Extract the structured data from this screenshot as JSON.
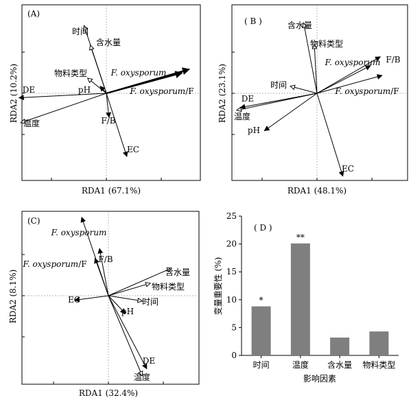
{
  "chart_data": [
    {
      "type": "scatter",
      "panel_label": "(A)",
      "xlabel": "RDA1 (67.1%)",
      "ylabel": "RDA2 (10.2%)",
      "vectors": [
        {
          "name": "F. oxysporum",
          "x": 0.93,
          "y": 0.27,
          "style": "bold"
        },
        {
          "name": "F. oxysporum/F",
          "x": 0.85,
          "y": 0.23,
          "style": "bold"
        },
        {
          "name": "时间",
          "x": -0.25,
          "y": 0.76,
          "style": "open"
        },
        {
          "name": "含水量",
          "x": -0.18,
          "y": 0.54,
          "style": "open"
        },
        {
          "name": "物料类型",
          "x": -0.21,
          "y": 0.17,
          "style": "open"
        },
        {
          "name": "pH",
          "x": -0.07,
          "y": 0.08,
          "style": "solid"
        },
        {
          "name": "DE",
          "x": -0.98,
          "y": -0.05,
          "style": "solid"
        },
        {
          "name": "温度",
          "x": -0.96,
          "y": -0.33,
          "style": "open"
        },
        {
          "name": "F/B",
          "x": 0.03,
          "y": -0.27,
          "style": "solid"
        },
        {
          "name": "EC",
          "x": 0.23,
          "y": -0.71,
          "style": "solid"
        }
      ]
    },
    {
      "type": "scatter",
      "panel_label": "( B )",
      "xlabel": "RDA1 (48.1%)",
      "ylabel": "RDA2 (23.1%)",
      "vectors": [
        {
          "name": "含水量",
          "x": -0.15,
          "y": 0.79,
          "style": "open"
        },
        {
          "name": "物料类型",
          "x": -0.03,
          "y": 0.55,
          "style": "open"
        },
        {
          "name": "F. oxysporum",
          "x": 0.6,
          "y": 0.31,
          "style": "solid"
        },
        {
          "name": "F/B",
          "x": 0.71,
          "y": 0.41,
          "style": "solid"
        },
        {
          "name": "F. oxysporum/F",
          "x": 0.73,
          "y": 0.2,
          "style": "solid"
        },
        {
          "name": "时间",
          "x": -0.3,
          "y": 0.08,
          "style": "open"
        },
        {
          "name": "DE",
          "x": -0.86,
          "y": -0.16,
          "style": "solid"
        },
        {
          "name": "温度",
          "x": -0.9,
          "y": -0.19,
          "style": "open"
        },
        {
          "name": "pH",
          "x": -0.59,
          "y": -0.42,
          "style": "solid"
        },
        {
          "name": "EC",
          "x": 0.29,
          "y": -0.93,
          "style": "solid"
        }
      ]
    },
    {
      "type": "scatter",
      "panel_label": "(C)",
      "xlabel": "RDA1 (32.4%)",
      "ylabel": "RDA2 (8.1%)",
      "vectors": [
        {
          "name": "F. oxysporum",
          "x": -0.3,
          "y": 0.88,
          "style": "solid"
        },
        {
          "name": "F/B",
          "x": -0.1,
          "y": 0.53,
          "style": "solid"
        },
        {
          "name": "F. oxysporum/F",
          "x": -0.15,
          "y": 0.42,
          "style": "solid"
        },
        {
          "name": "含水量",
          "x": 0.71,
          "y": 0.31,
          "style": "open"
        },
        {
          "name": "物料类型",
          "x": 0.47,
          "y": 0.14,
          "style": "open"
        },
        {
          "name": "EC",
          "x": -0.38,
          "y": -0.05,
          "style": "solid"
        },
        {
          "name": "时间",
          "x": 0.38,
          "y": -0.06,
          "style": "open"
        },
        {
          "name": "pH",
          "x": 0.19,
          "y": -0.2,
          "style": "solid"
        },
        {
          "name": "DE",
          "x": 0.43,
          "y": -0.82,
          "style": "solid"
        },
        {
          "name": "温度",
          "x": 0.38,
          "y": -0.9,
          "style": "open"
        }
      ]
    },
    {
      "type": "bar",
      "panel_label": "( D )",
      "categories": [
        "时间",
        "温度",
        "含水量",
        "物料类型"
      ],
      "values": [
        8.8,
        20.1,
        3.2,
        4.3
      ],
      "annotations": [
        "*",
        "**",
        "",
        ""
      ],
      "xlabel": "影响因素",
      "ylabel": "变量重要性 (%)",
      "ylim": [
        0,
        25
      ],
      "yticks": [
        0,
        5,
        10,
        15,
        20,
        25
      ],
      "bar_color": "#7f7f7f"
    }
  ]
}
